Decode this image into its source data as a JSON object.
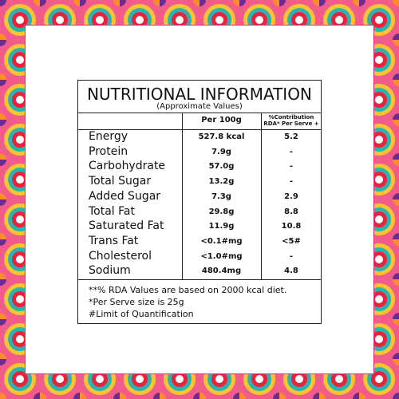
{
  "header": {
    "title": "NUTRITIONAL INFORMATION",
    "subtitle": "(Approximate Values)"
  },
  "table": {
    "columns": [
      "Per 100g",
      "%Contribution",
      "RDA* Per Serve +"
    ],
    "rows": [
      [
        "Energy",
        "527.8 kcal",
        "5.2"
      ],
      [
        "Protein",
        "7.9g",
        "-"
      ],
      [
        "Carbohydrate",
        "57.0g",
        "-"
      ],
      [
        "Total Sugar",
        "13.2g",
        "-"
      ],
      [
        "Added Sugar",
        "7.3g",
        "2.9"
      ],
      [
        "Total Fat",
        "29.8g",
        "8.8"
      ],
      [
        "Saturated Fat",
        "11.9g",
        "10.8"
      ],
      [
        "Trans Fat",
        "<0.1#mg",
        "<5#"
      ],
      [
        "Cholesterol",
        "<1.0#mg",
        "-"
      ],
      [
        "Sodium",
        "480.4mg",
        "4.8"
      ]
    ]
  },
  "footnotes": [
    "**% RDA Values are based on 2000 kcal diet.",
    "*Per Serve size is 25g",
    "#Limit of Quantification"
  ]
}
